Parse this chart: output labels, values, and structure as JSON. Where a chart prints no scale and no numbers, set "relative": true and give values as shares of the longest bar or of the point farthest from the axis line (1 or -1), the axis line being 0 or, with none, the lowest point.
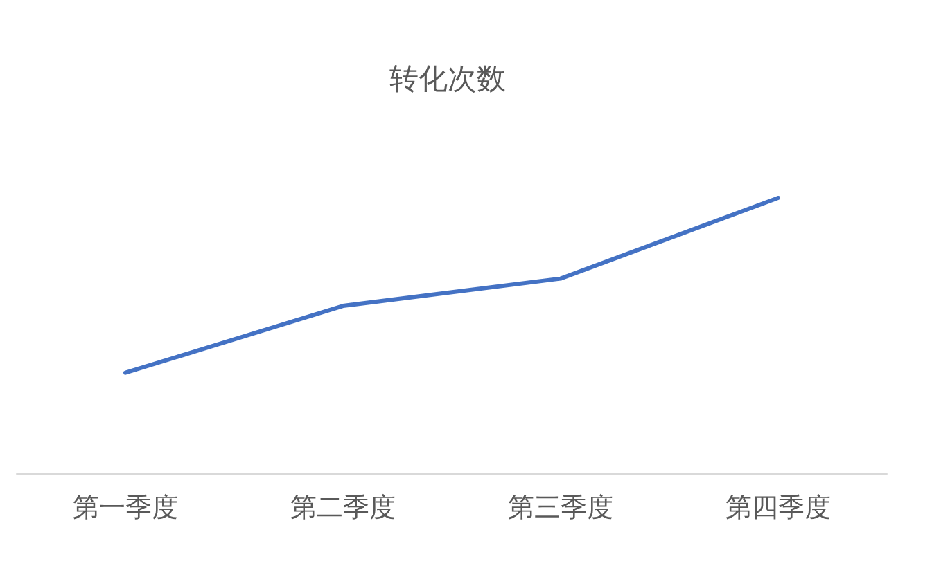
{
  "chart_data": {
    "type": "line",
    "title": "转化次数",
    "categories": [
      "第一季度",
      "第二季度",
      "第三季度",
      "第四季度"
    ],
    "values": [
      0.365,
      0.608,
      0.707,
      1
    ],
    "color": "#4472c4",
    "relative": true,
    "marker": "none",
    "line_style": "solid"
  }
}
